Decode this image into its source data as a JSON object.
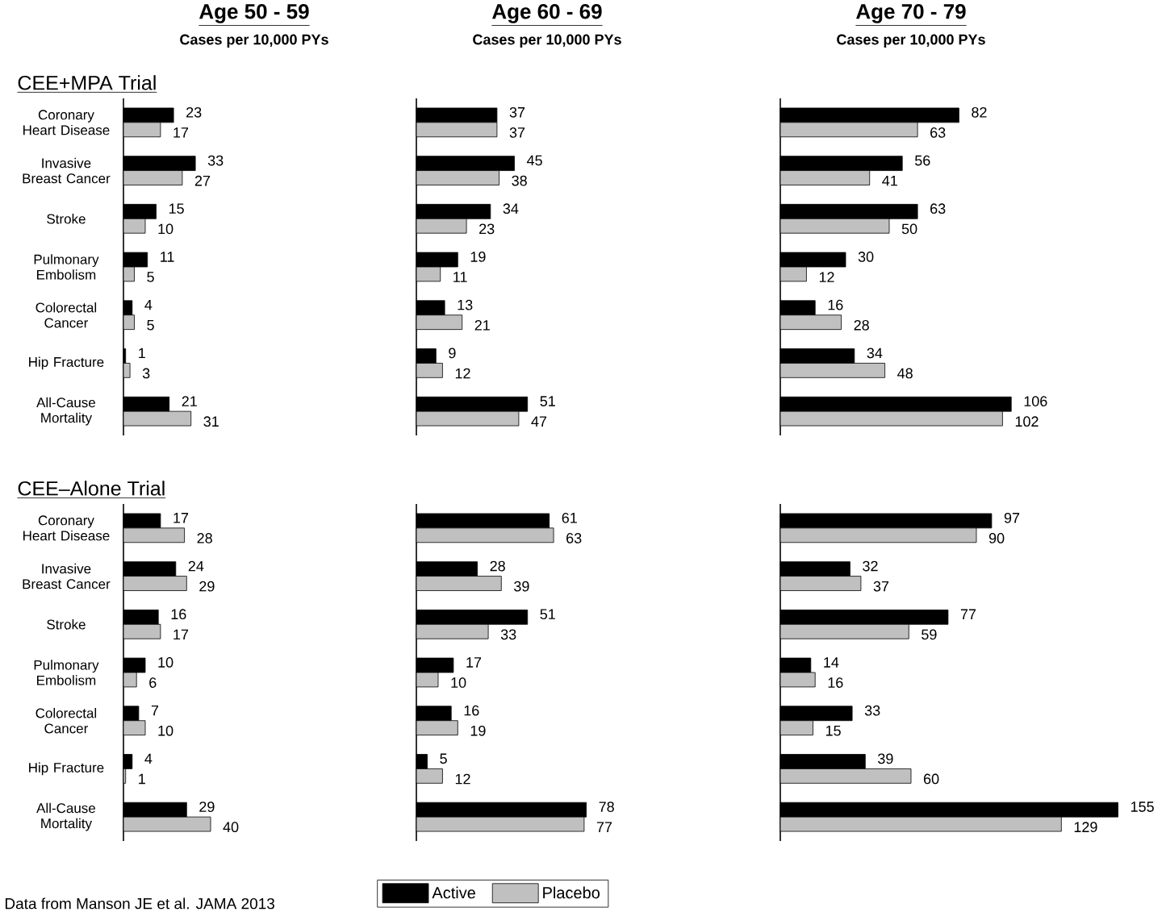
{
  "chart_data": [
    {
      "type": "bar",
      "orientation": "horizontal",
      "title": "Age 50 - 59",
      "subtitle": "Cases per 10,000 PYs",
      "annotations": [
        "CEE+MPA Trial"
      ],
      "categories": [
        "Coronary Heart Disease",
        "Invasive Breast Cancer",
        "Stroke",
        "Pulmonary Embolism",
        "Colorectal Cancer",
        "Hip Fracture",
        "All-Cause Mortality"
      ],
      "tick_labels": "y",
      "data_labels": true,
      "legend": false,
      "series": [
        {
          "color": "#000000",
          "values": [
            23,
            33,
            15,
            11,
            4,
            1,
            21
          ]
        },
        {
          "color": "#c0c0c0",
          "values": [
            17,
            27,
            10,
            5,
            5,
            3,
            31
          ]
        }
      ]
    },
    {
      "type": "bar",
      "orientation": "horizontal",
      "title": "Age 60 - 69",
      "subtitle": "Cases per 10,000 PYs",
      "categories": [
        null,
        null,
        null,
        null,
        null,
        null,
        null
      ],
      "tick_labels": false,
      "data_labels": true,
      "legend": false,
      "series": [
        {
          "color": "#000000",
          "values": [
            37,
            45,
            34,
            19,
            13,
            9,
            51
          ]
        },
        {
          "color": "#c0c0c0",
          "values": [
            37,
            38,
            23,
            11,
            21,
            12,
            47
          ]
        }
      ]
    },
    {
      "type": "bar",
      "orientation": "horizontal",
      "title": "Age 70 - 79",
      "subtitle": "Cases per 10,000 PYs",
      "categories": [
        null,
        null,
        null,
        null,
        null,
        null,
        null
      ],
      "tick_labels": false,
      "data_labels": true,
      "legend": false,
      "series": [
        {
          "color": "#000000",
          "values": [
            82,
            56,
            63,
            30,
            16,
            34,
            106
          ]
        },
        {
          "color": "#c0c0c0",
          "values": [
            63,
            41,
            50,
            12,
            28,
            48,
            102
          ]
        }
      ]
    },
    {
      "type": "bar",
      "orientation": "horizontal",
      "annotations": [
        "CEE–Alone Trial",
        "Data from Manson JE et al. JAMA 2013"
      ],
      "categories": [
        "Coronary Heart Disease",
        "Invasive Breast Cancer",
        "Stroke",
        "Pulmonary Embolism",
        "Colorectal Cancer",
        "Hip Fracture",
        "All-Cause Mortality"
      ],
      "tick_labels": "y",
      "data_labels": true,
      "legend": false,
      "series": [
        {
          "color": "#000000",
          "values": [
            17,
            24,
            16,
            10,
            7,
            4,
            29
          ]
        },
        {
          "color": "#c0c0c0",
          "values": [
            28,
            29,
            17,
            6,
            10,
            1,
            40
          ]
        }
      ]
    },
    {
      "type": "bar",
      "orientation": "horizontal",
      "categories": [
        null,
        null,
        null,
        null,
        null,
        null,
        null
      ],
      "tick_labels": false,
      "data_labels": true,
      "legend": "bottom",
      "series": [
        {
          "name": "Active",
          "color": "#000000",
          "values": [
            61,
            28,
            51,
            17,
            16,
            5,
            78
          ]
        },
        {
          "name": "Placebo",
          "color": "#c0c0c0",
          "values": [
            63,
            39,
            33,
            10,
            19,
            12,
            77
          ]
        }
      ]
    },
    {
      "type": "bar",
      "orientation": "horizontal",
      "categories": [
        null,
        null,
        null,
        null,
        null,
        null,
        null
      ],
      "tick_labels": false,
      "data_labels": true,
      "legend": false,
      "series": [
        {
          "color": "#000000",
          "values": [
            97,
            32,
            77,
            14,
            33,
            39,
            155
          ]
        },
        {
          "color": "#c0c0c0",
          "values": [
            90,
            37,
            59,
            16,
            15,
            60,
            129
          ]
        }
      ]
    }
  ]
}
